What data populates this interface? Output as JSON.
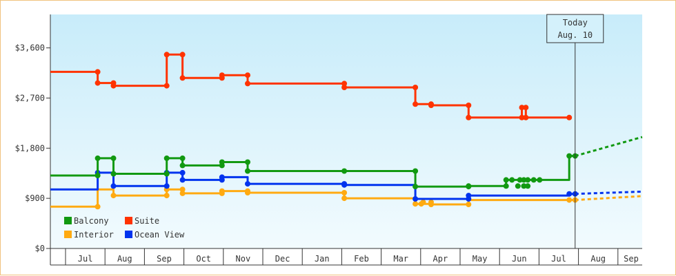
{
  "chart_data": {
    "type": "line",
    "ylabel": "",
    "xlabel": "",
    "ylim": [
      0,
      4200
    ],
    "yticks": [
      0,
      900,
      1800,
      2700,
      3600
    ],
    "ytick_labels": [
      "$0",
      "$900",
      "$1,800",
      "$2,700",
      "$3,600"
    ],
    "xlim": [
      0,
      15
    ],
    "month_labels": [
      "Jul",
      "Aug",
      "Sep",
      "Oct",
      "Nov",
      "Dec",
      "Jan",
      "Feb",
      "Mar",
      "Apr",
      "May",
      "Jun",
      "Jul",
      "Aug",
      "Sep"
    ],
    "grid": false,
    "legend_placement": "bottom-left",
    "today": {
      "title": "Today",
      "date": "Aug. 10",
      "x": 13.3
    },
    "series": [
      {
        "name": "Suite",
        "color": "#ff3300",
        "points": [
          [
            0,
            3170
          ],
          [
            1.2,
            3170
          ],
          [
            1.2,
            2970
          ],
          [
            1.6,
            2970
          ],
          [
            1.6,
            2920
          ],
          [
            2.95,
            2920
          ],
          [
            2.95,
            3480
          ],
          [
            3.35,
            3480
          ],
          [
            3.35,
            3060
          ],
          [
            4.35,
            3060
          ],
          [
            4.35,
            3110
          ],
          [
            5.0,
            3110
          ],
          [
            5.0,
            2960
          ],
          [
            7.45,
            2960
          ],
          [
            7.45,
            2890
          ],
          [
            9.25,
            2890
          ],
          [
            9.25,
            2590
          ],
          [
            9.65,
            2590
          ],
          [
            9.65,
            2570
          ],
          [
            10.6,
            2570
          ],
          [
            10.6,
            2350
          ],
          [
            11.95,
            2350
          ],
          [
            11.95,
            2530
          ],
          [
            12.05,
            2530
          ],
          [
            12.05,
            2350
          ],
          [
            13.15,
            2350
          ]
        ],
        "markers": [
          [
            1.2,
            3170
          ],
          [
            1.2,
            2970
          ],
          [
            1.6,
            2970
          ],
          [
            1.6,
            2920
          ],
          [
            2.95,
            2920
          ],
          [
            2.95,
            3480
          ],
          [
            3.35,
            3480
          ],
          [
            3.35,
            3060
          ],
          [
            4.35,
            3060
          ],
          [
            4.35,
            3110
          ],
          [
            5.0,
            3110
          ],
          [
            5.0,
            2960
          ],
          [
            7.45,
            2960
          ],
          [
            7.45,
            2890
          ],
          [
            9.25,
            2890
          ],
          [
            9.25,
            2590
          ],
          [
            9.65,
            2590
          ],
          [
            9.65,
            2570
          ],
          [
            10.6,
            2570
          ],
          [
            10.6,
            2350
          ],
          [
            11.95,
            2350
          ],
          [
            11.95,
            2530
          ],
          [
            12.05,
            2530
          ],
          [
            12.05,
            2350
          ],
          [
            13.15,
            2350
          ]
        ]
      },
      {
        "name": "Balcony",
        "color": "#119911",
        "points": [
          [
            0,
            1310
          ],
          [
            1.2,
            1310
          ],
          [
            1.2,
            1620
          ],
          [
            1.6,
            1620
          ],
          [
            1.6,
            1340
          ],
          [
            2.95,
            1340
          ],
          [
            2.95,
            1620
          ],
          [
            3.35,
            1620
          ],
          [
            3.35,
            1490
          ],
          [
            4.35,
            1490
          ],
          [
            4.35,
            1550
          ],
          [
            5.0,
            1550
          ],
          [
            5.0,
            1390
          ],
          [
            7.45,
            1390
          ],
          [
            7.45,
            1390
          ],
          [
            9.25,
            1390
          ],
          [
            9.25,
            1110
          ],
          [
            10.6,
            1110
          ],
          [
            10.6,
            1120
          ],
          [
            11.55,
            1120
          ],
          [
            11.55,
            1230
          ],
          [
            12.4,
            1230
          ],
          [
            13.15,
            1230
          ],
          [
            13.15,
            1660
          ],
          [
            13.3,
            1660
          ]
        ],
        "markers": [
          [
            1.2,
            1310
          ],
          [
            1.2,
            1620
          ],
          [
            1.6,
            1620
          ],
          [
            1.6,
            1340
          ],
          [
            2.95,
            1340
          ],
          [
            2.95,
            1620
          ],
          [
            3.35,
            1620
          ],
          [
            3.35,
            1490
          ],
          [
            4.35,
            1490
          ],
          [
            4.35,
            1550
          ],
          [
            5.0,
            1550
          ],
          [
            5.0,
            1390
          ],
          [
            7.45,
            1390
          ],
          [
            9.25,
            1390
          ],
          [
            9.25,
            1110
          ],
          [
            10.6,
            1110
          ],
          [
            10.6,
            1120
          ],
          [
            11.55,
            1230
          ],
          [
            11.55,
            1120
          ],
          [
            11.7,
            1230
          ],
          [
            11.85,
            1120
          ],
          [
            11.9,
            1230
          ],
          [
            12.0,
            1230
          ],
          [
            12.0,
            1120
          ],
          [
            12.1,
            1120
          ],
          [
            12.1,
            1230
          ],
          [
            12.25,
            1230
          ],
          [
            12.4,
            1230
          ],
          [
            13.15,
            1660
          ],
          [
            13.3,
            1660
          ]
        ]
      },
      {
        "name": "Ocean View",
        "color": "#0033ee",
        "points": [
          [
            0,
            1060
          ],
          [
            1.2,
            1060
          ],
          [
            1.2,
            1360
          ],
          [
            1.6,
            1360
          ],
          [
            1.6,
            1120
          ],
          [
            2.95,
            1120
          ],
          [
            2.95,
            1360
          ],
          [
            3.35,
            1360
          ],
          [
            3.35,
            1230
          ],
          [
            4.35,
            1230
          ],
          [
            4.35,
            1280
          ],
          [
            5.0,
            1280
          ],
          [
            5.0,
            1160
          ],
          [
            7.45,
            1160
          ],
          [
            7.45,
            1140
          ],
          [
            9.25,
            1140
          ],
          [
            9.25,
            890
          ],
          [
            10.6,
            890
          ],
          [
            10.6,
            950
          ],
          [
            13.15,
            950
          ],
          [
            13.15,
            980
          ],
          [
            13.3,
            980
          ]
        ],
        "markers": [
          [
            1.2,
            1360
          ],
          [
            1.6,
            1120
          ],
          [
            2.95,
            1120
          ],
          [
            2.95,
            1360
          ],
          [
            3.35,
            1360
          ],
          [
            3.35,
            1230
          ],
          [
            4.35,
            1230
          ],
          [
            4.35,
            1280
          ],
          [
            5.0,
            1160
          ],
          [
            7.45,
            1160
          ],
          [
            7.45,
            1140
          ],
          [
            9.25,
            890
          ],
          [
            10.6,
            890
          ],
          [
            10.6,
            950
          ],
          [
            13.15,
            980
          ],
          [
            13.3,
            980
          ]
        ]
      },
      {
        "name": "Interior",
        "color": "#ffaa11",
        "points": [
          [
            0,
            750
          ],
          [
            1.2,
            750
          ],
          [
            1.2,
            1060
          ],
          [
            1.6,
            1060
          ],
          [
            1.6,
            950
          ],
          [
            2.95,
            950
          ],
          [
            2.95,
            1060
          ],
          [
            3.35,
            1060
          ],
          [
            3.35,
            990
          ],
          [
            4.35,
            990
          ],
          [
            4.35,
            1030
          ],
          [
            5.0,
            1030
          ],
          [
            5.0,
            1000
          ],
          [
            7.45,
            1000
          ],
          [
            7.45,
            900
          ],
          [
            9.25,
            900
          ],
          [
            9.25,
            800
          ],
          [
            9.65,
            800
          ],
          [
            9.65,
            790
          ],
          [
            10.6,
            790
          ],
          [
            10.6,
            870
          ],
          [
            13.3,
            870
          ]
        ],
        "markers": [
          [
            1.2,
            750
          ],
          [
            1.6,
            950
          ],
          [
            2.95,
            950
          ],
          [
            2.95,
            1060
          ],
          [
            3.35,
            1060
          ],
          [
            3.35,
            990
          ],
          [
            4.35,
            990
          ],
          [
            4.35,
            1030
          ],
          [
            5.0,
            1030
          ],
          [
            5.0,
            1000
          ],
          [
            7.45,
            1000
          ],
          [
            7.45,
            900
          ],
          [
            9.25,
            800
          ],
          [
            9.4,
            800
          ],
          [
            9.45,
            830
          ],
          [
            9.65,
            790
          ],
          [
            9.65,
            830
          ],
          [
            10.6,
            790
          ],
          [
            13.15,
            870
          ],
          [
            13.3,
            870
          ]
        ]
      }
    ],
    "forecast": [
      {
        "name": "Balcony",
        "color": "#119911",
        "points": [
          [
            13.3,
            1660
          ],
          [
            15.0,
            2000
          ]
        ]
      },
      {
        "name": "Ocean View",
        "color": "#0033ee",
        "points": [
          [
            13.3,
            980
          ],
          [
            15.0,
            1020
          ]
        ]
      },
      {
        "name": "Interior",
        "color": "#ffaa11",
        "points": [
          [
            13.3,
            870
          ],
          [
            15.0,
            940
          ]
        ]
      }
    ],
    "legend": [
      {
        "name": "Balcony",
        "color": "#119911"
      },
      {
        "name": "Suite",
        "color": "#ff3300"
      },
      {
        "name": "Interior",
        "color": "#ffaa11"
      },
      {
        "name": "Ocean View",
        "color": "#0033ee"
      }
    ]
  }
}
